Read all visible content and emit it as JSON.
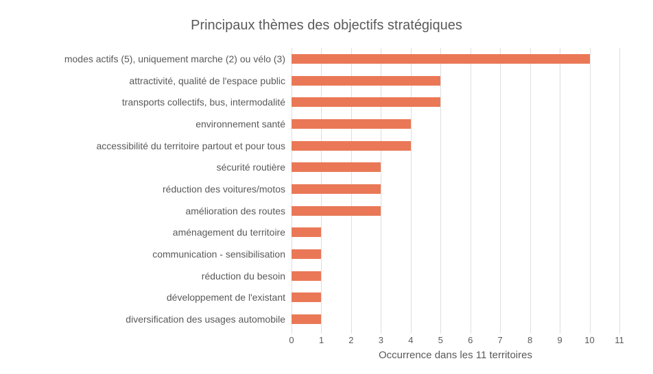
{
  "chart_data": {
    "type": "bar",
    "orientation": "horizontal",
    "title": "Principaux thèmes des objectifs stratégiques",
    "xlabel": "Occurrence dans les 11 territoires",
    "ylabel": "",
    "categories": [
      "modes actifs (5), uniquement marche (2) ou vélo (3)",
      "attractivité, qualité de l'espace public",
      "transports collectifs, bus, intermodalité",
      "environnement santé",
      "accessibilité du territoire partout et pour tous",
      "sécurité routière",
      "réduction des voitures/motos",
      "amélioration des routes",
      "aménagement du territoire",
      "communication - sensibilisation",
      "réduction du besoin",
      "développement de l'existant",
      "diversification des usages automobile"
    ],
    "values": [
      10,
      5,
      5,
      4,
      4,
      3,
      3,
      3,
      1,
      1,
      1,
      1,
      1
    ],
    "xlim": [
      0,
      11
    ],
    "xticks": [
      0,
      1,
      2,
      3,
      4,
      5,
      6,
      7,
      8,
      9,
      10,
      11
    ],
    "grid": "vertical-only",
    "legend": "none"
  },
  "colors": {
    "bar": "#ea7857",
    "gridline": "#dedede",
    "text": "#595959",
    "background": "#ffffff"
  }
}
